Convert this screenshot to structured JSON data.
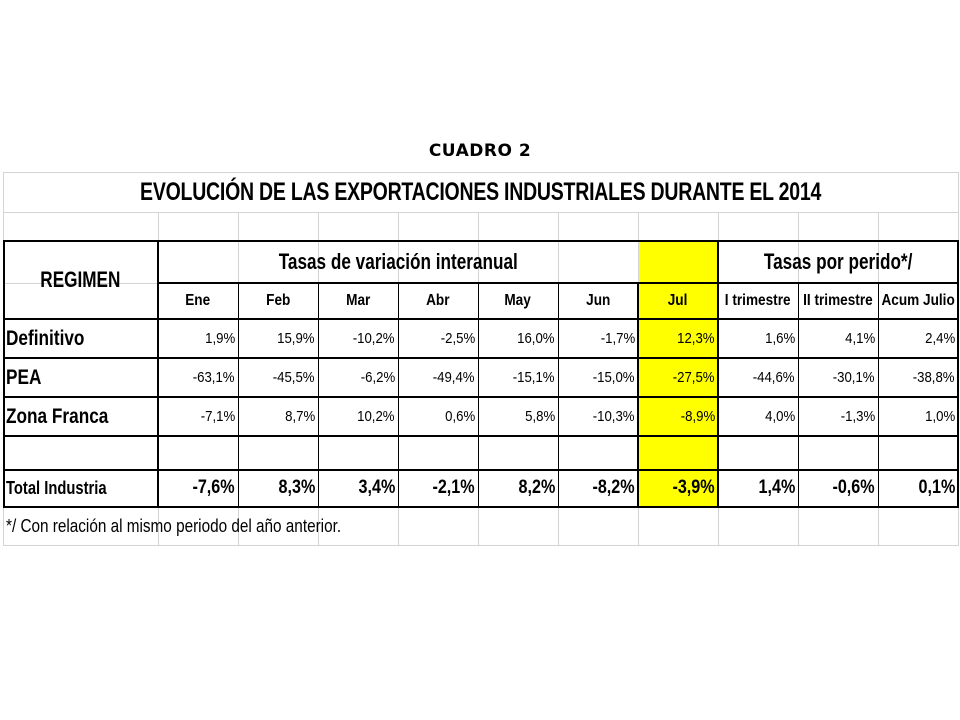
{
  "caption": "CUADRO 2",
  "table": {
    "title": "EVOLUCIÓN DE LAS EXPORTACIONES INDUSTRIALES DURANTE EL 2014",
    "regimen_header": "REGIMEN",
    "group_monthly": "Tasas de variación interanual",
    "group_period": "Tasas por perido*/",
    "columns": [
      "Ene",
      "Feb",
      "Mar",
      "Abr",
      "May",
      "Jun",
      "Jul",
      "I trimestre",
      "II trimestre",
      "Acum Julio"
    ],
    "rows": [
      {
        "label": "Definitivo",
        "values": [
          "1,9%",
          "15,9%",
          "-10,2%",
          "-2,5%",
          "16,0%",
          "-1,7%",
          "12,3%",
          "1,6%",
          "4,1%",
          "2,4%"
        ]
      },
      {
        "label": "PEA",
        "values": [
          "-63,1%",
          "-45,5%",
          "-6,2%",
          "-49,4%",
          "-15,1%",
          "-15,0%",
          "-27,5%",
          "-44,6%",
          "-30,1%",
          "-38,8%"
        ]
      },
      {
        "label": "Zona Franca",
        "values": [
          "-7,1%",
          "8,7%",
          "10,2%",
          "0,6%",
          "5,8%",
          "-10,3%",
          "-8,9%",
          "4,0%",
          "-1,3%",
          "1,0%"
        ]
      }
    ],
    "total": {
      "label": "Total Industria",
      "values": [
        "-7,6%",
        "8,3%",
        "3,4%",
        "-2,1%",
        "8,2%",
        "-8,2%",
        "-3,9%",
        "1,4%",
        "-0,6%",
        "0,1%"
      ]
    },
    "footnote": "*/ Con relación al mismo periodo del año anterior.",
    "highlight_color": "#ffff00"
  }
}
